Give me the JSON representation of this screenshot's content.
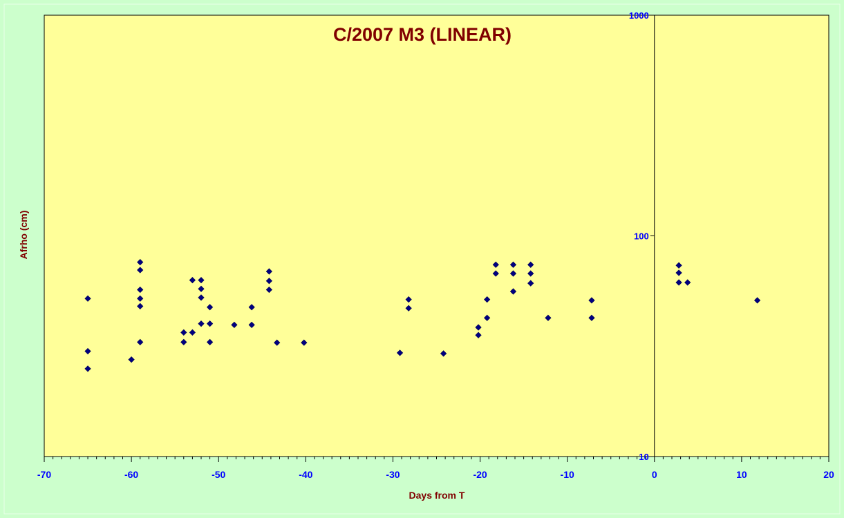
{
  "chart_data": {
    "type": "scatter",
    "title": "C/2007 M3 (LINEAR)",
    "xlabel": "Days from T",
    "ylabel": "Afrho (cm)",
    "xlim": [
      -70,
      20
    ],
    "ylim": [
      10,
      1000
    ],
    "yscale": "log",
    "x_ticks": [
      -70,
      -60,
      -50,
      -40,
      -30,
      -20,
      -10,
      0,
      10,
      20
    ],
    "y_ticks": [
      10,
      100,
      1000
    ],
    "grid": false,
    "legend": "none",
    "colors": {
      "background": "#ccffcc",
      "plot_area": "#ffff99",
      "title": "#800000",
      "axis_title": "#800000",
      "tick_label": "#0000ff",
      "marker": "#000080"
    },
    "points": [
      {
        "x": -65,
        "y": 52
      },
      {
        "x": -65,
        "y": 30
      },
      {
        "x": -65,
        "y": 25
      },
      {
        "x": -60,
        "y": 27.5
      },
      {
        "x": -59,
        "y": 76
      },
      {
        "x": -59,
        "y": 70
      },
      {
        "x": -59,
        "y": 57
      },
      {
        "x": -59,
        "y": 52
      },
      {
        "x": -59,
        "y": 48
      },
      {
        "x": -59,
        "y": 33
      },
      {
        "x": -54,
        "y": 36.5
      },
      {
        "x": -54,
        "y": 33
      },
      {
        "x": -53,
        "y": 63
      },
      {
        "x": -53,
        "y": 36.5
      },
      {
        "x": -52,
        "y": 63
      },
      {
        "x": -52,
        "y": 57.5
      },
      {
        "x": -52,
        "y": 52.5
      },
      {
        "x": -52,
        "y": 40
      },
      {
        "x": -51,
        "y": 47.5
      },
      {
        "x": -51,
        "y": 40
      },
      {
        "x": -51,
        "y": 33
      },
      {
        "x": -48.2,
        "y": 39.5
      },
      {
        "x": -46.2,
        "y": 47.5
      },
      {
        "x": -46.2,
        "y": 39.5
      },
      {
        "x": -44.2,
        "y": 69
      },
      {
        "x": -44.2,
        "y": 62.5
      },
      {
        "x": -44.2,
        "y": 57
      },
      {
        "x": -43.3,
        "y": 32.8
      },
      {
        "x": -40.2,
        "y": 32.8
      },
      {
        "x": -29.2,
        "y": 29.5
      },
      {
        "x": -28.2,
        "y": 51.5
      },
      {
        "x": -28.2,
        "y": 47
      },
      {
        "x": -24.2,
        "y": 29.3
      },
      {
        "x": -20.2,
        "y": 38.5
      },
      {
        "x": -20.2,
        "y": 35.5
      },
      {
        "x": -19.2,
        "y": 51.5
      },
      {
        "x": -19.2,
        "y": 42.5
      },
      {
        "x": -18.2,
        "y": 74
      },
      {
        "x": -18.2,
        "y": 67.5
      },
      {
        "x": -16.2,
        "y": 74
      },
      {
        "x": -16.2,
        "y": 67.5
      },
      {
        "x": -16.2,
        "y": 56
      },
      {
        "x": -14.2,
        "y": 74
      },
      {
        "x": -14.2,
        "y": 67.5
      },
      {
        "x": -14.2,
        "y": 61
      },
      {
        "x": -12.2,
        "y": 42.5
      },
      {
        "x": -7.2,
        "y": 51
      },
      {
        "x": -7.2,
        "y": 42.5
      },
      {
        "x": 2.8,
        "y": 73.5
      },
      {
        "x": 2.8,
        "y": 68
      },
      {
        "x": 2.8,
        "y": 61.5
      },
      {
        "x": 3.8,
        "y": 61.5
      },
      {
        "x": 11.8,
        "y": 51
      }
    ]
  }
}
